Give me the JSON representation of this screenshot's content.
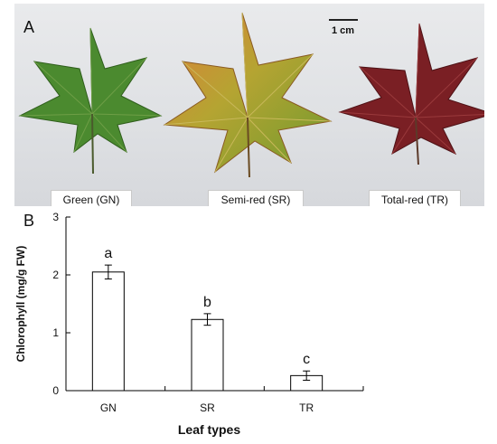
{
  "panel_a": {
    "label": "A",
    "scale_bar_label": "1 cm",
    "leaves": [
      {
        "caption": "Green (GN)",
        "color": "#3f7a2a"
      },
      {
        "caption": "Semi-red (SR)",
        "color": "#a9a232"
      },
      {
        "caption": "Total-red (TR)",
        "color": "#7a1f24"
      }
    ]
  },
  "panel_b": {
    "label": "B"
  },
  "chart_data": {
    "type": "bar",
    "categories": [
      "GN",
      "SR",
      "TR"
    ],
    "values": [
      2.05,
      1.23,
      0.26
    ],
    "errors": [
      0.12,
      0.1,
      0.08
    ],
    "significance_letters": [
      "a",
      "b",
      "c"
    ],
    "xlabel": "Leaf types",
    "ylabel": "Chlorophyll (mg/g FW)",
    "ylim": [
      0,
      3
    ],
    "yticks": [
      0,
      1,
      2,
      3
    ],
    "grid": false,
    "bar_fill": "#ffffff",
    "bar_stroke": "#000000"
  }
}
